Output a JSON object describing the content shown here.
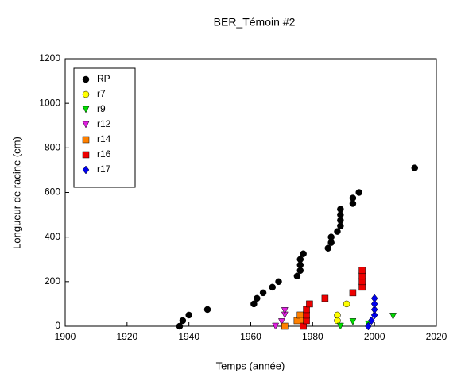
{
  "chart_data": {
    "type": "scatter",
    "title": "BER_Témoin #2",
    "x_label": "Temps (année)",
    "y_label": "Longueur de racine (cm)",
    "xlim": [
      1900,
      2020
    ],
    "xticks": [
      1900,
      1920,
      1940,
      1960,
      1980,
      2000,
      2020
    ],
    "ylim": [
      0,
      1200
    ],
    "yticks": [
      0,
      200,
      400,
      600,
      800,
      1000,
      1200
    ],
    "legend": "upper left",
    "series": [
      {
        "name": "RP",
        "color": "#000000",
        "marker": "circle",
        "x": [
          1937,
          1938,
          1940,
          1946,
          1961,
          1962,
          1964,
          1967,
          1969,
          1975,
          1976,
          1976,
          1976,
          1977,
          1985,
          1986,
          1986,
          1988,
          1989,
          1989,
          1989,
          1989,
          1993,
          1993,
          1995,
          2013
        ],
        "values": [
          0,
          25,
          50,
          75,
          100,
          125,
          150,
          175,
          200,
          225,
          250,
          275,
          300,
          325,
          350,
          375,
          400,
          425,
          450,
          475,
          500,
          525,
          550,
          575,
          600,
          710
        ]
      },
      {
        "name": "r7",
        "color": "#ffff00",
        "marker": "circle",
        "x": [
          1988,
          1988,
          1991
        ],
        "values": [
          25,
          50,
          100
        ]
      },
      {
        "name": "r9",
        "color": "#00dd00",
        "marker": "triangle-down",
        "x": [
          1989,
          1993,
          1998,
          2006
        ],
        "values": [
          0,
          20,
          10,
          45
        ]
      },
      {
        "name": "r12",
        "color": "#e020e0",
        "marker": "triangle-down",
        "x": [
          1968,
          1970,
          1971,
          1971
        ],
        "values": [
          0,
          20,
          50,
          70
        ]
      },
      {
        "name": "r14",
        "color": "#ff8000",
        "marker": "square",
        "x": [
          1971,
          1975,
          1976,
          1977
        ],
        "values": [
          0,
          25,
          50,
          25
        ]
      },
      {
        "name": "r16",
        "color": "#ee0000",
        "marker": "square",
        "x": [
          1977,
          1978,
          1978,
          1978,
          1979,
          1984,
          1993,
          1996,
          1996,
          1996,
          1996
        ],
        "values": [
          0,
          25,
          50,
          75,
          100,
          125,
          150,
          175,
          200,
          225,
          250
        ]
      },
      {
        "name": "r17",
        "color": "#0000ee",
        "marker": "diamond",
        "x": [
          1998,
          1999,
          2000,
          2000,
          2000,
          2000
        ],
        "values": [
          0,
          25,
          50,
          75,
          100,
          125
        ]
      }
    ]
  }
}
